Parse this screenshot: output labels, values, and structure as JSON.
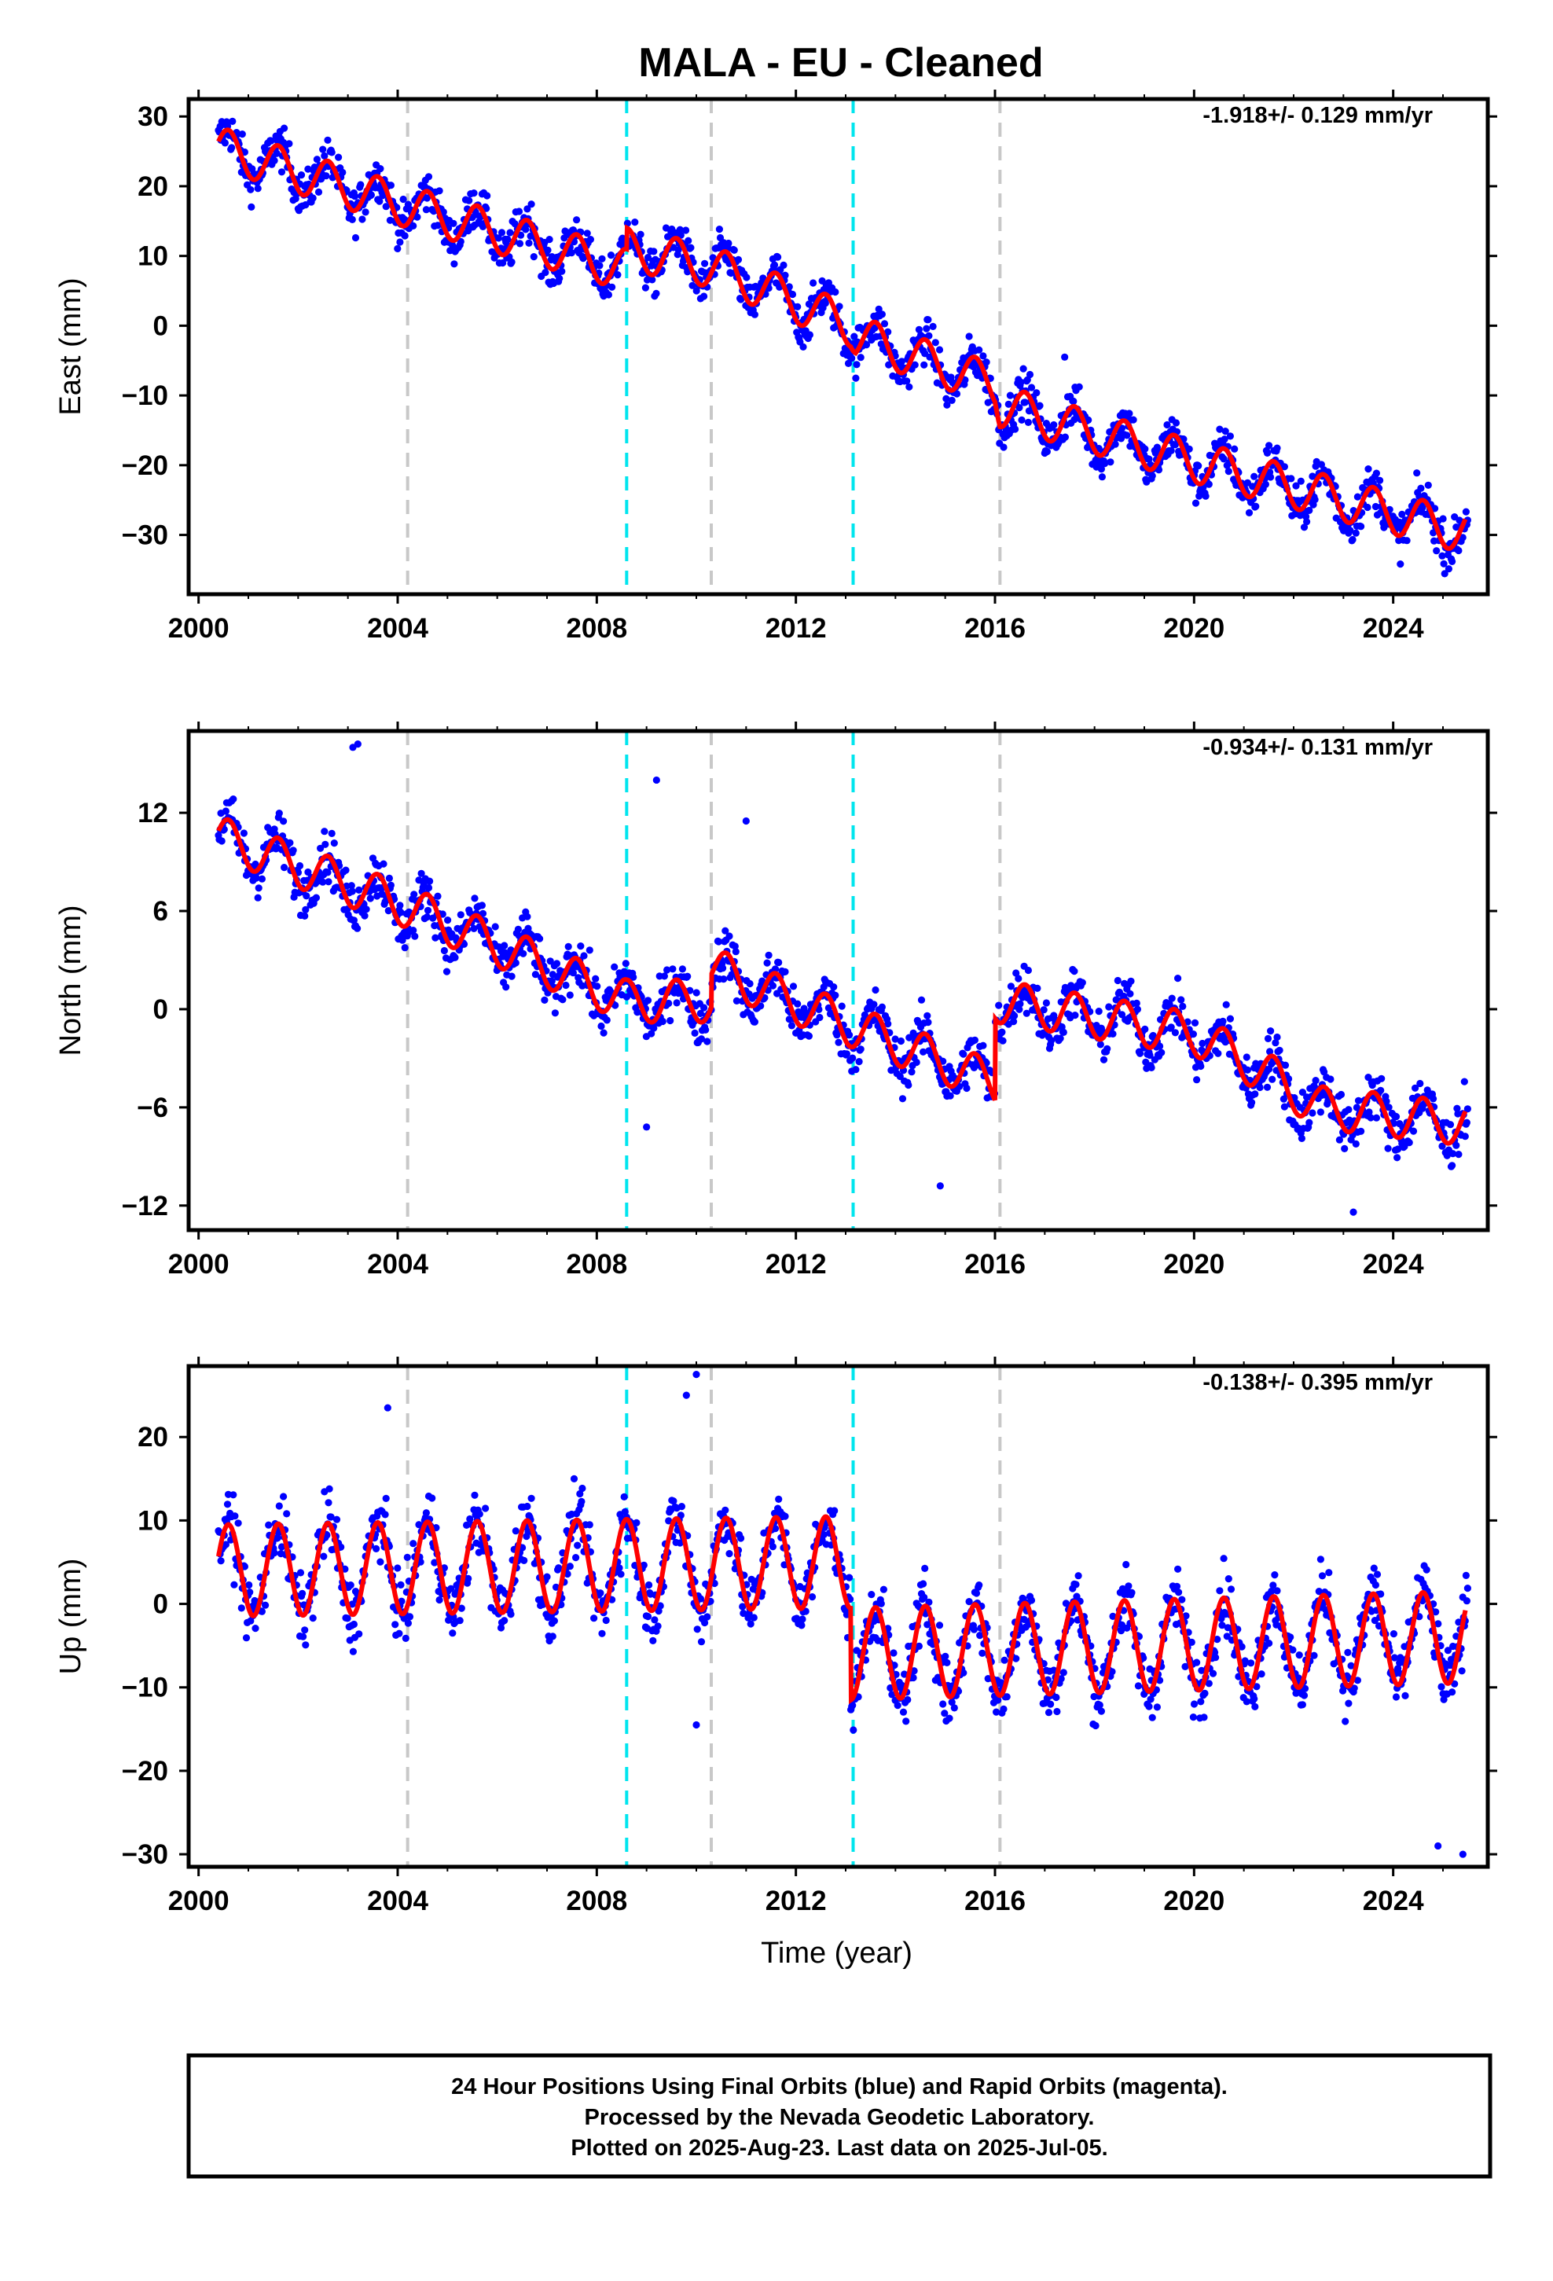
{
  "title": "MALA  - EU - Cleaned",
  "colors": {
    "points": "#0000ff",
    "fit": "#ff0000",
    "equipment_line": "#c8c8c8",
    "event_line": "#00e5ee",
    "frame": "#000000"
  },
  "chart_data": [
    {
      "type": "scatter",
      "name": "east",
      "ylabel": "East (mm)",
      "xlabel": "",
      "rate": "-1.918+/- 0.129 mm/yr",
      "xlim": [
        1999.8,
        2025.9
      ],
      "ylim": [
        -38.5,
        32.5
      ],
      "yticks": [
        -30,
        -20,
        -10,
        0,
        10,
        20,
        30
      ],
      "xticks": [
        2000,
        2004,
        2008,
        2012,
        2016,
        2020,
        2024
      ],
      "grid": false,
      "trend": [
        {
          "x": 2000.4,
          "y": 25.5
        },
        {
          "x": 2004.0,
          "y": 17.5
        },
        {
          "x": 2008.6,
          "y": 8.0
        },
        {
          "x": 2008.61,
          "y": 11.0
        },
        {
          "x": 2010.3,
          "y": 8.5
        },
        {
          "x": 2013.1,
          "y": 0.0
        },
        {
          "x": 2013.2,
          "y": -1.5
        },
        {
          "x": 2016.0,
          "y": -8.5
        },
        {
          "x": 2016.1,
          "y": -11.5
        },
        {
          "x": 2020.0,
          "y": -19.5
        },
        {
          "x": 2025.4,
          "y": -29.5
        }
      ],
      "seasonal_amplitude": 3.0,
      "scatter_spread": 4.0,
      "outliers": [
        {
          "x": 2017.4,
          "y": -4.5
        }
      ]
    },
    {
      "type": "scatter",
      "name": "north",
      "ylabel": "North (mm)",
      "xlabel": "",
      "rate": "-0.934+/- 0.131 mm/yr",
      "xlim": [
        1999.8,
        2025.9
      ],
      "ylim": [
        -13.5,
        17.0
      ],
      "yticks": [
        -12,
        -6,
        0,
        6,
        12
      ],
      "xticks": [
        2000,
        2004,
        2008,
        2012,
        2016,
        2020,
        2024
      ],
      "grid": false,
      "trend": [
        {
          "x": 2000.4,
          "y": 10.5
        },
        {
          "x": 2004.0,
          "y": 6.5
        },
        {
          "x": 2008.6,
          "y": 0.5
        },
        {
          "x": 2010.3,
          "y": 0.5
        },
        {
          "x": 2010.31,
          "y": 2.5
        },
        {
          "x": 2013.1,
          "y": -1.0
        },
        {
          "x": 2016.0,
          "y": -4.5
        },
        {
          "x": 2016.01,
          "y": 0.5
        },
        {
          "x": 2020.0,
          "y": -1.5
        },
        {
          "x": 2021.5,
          "y": -4.0
        },
        {
          "x": 2022.5,
          "y": -6.0
        },
        {
          "x": 2025.4,
          "y": -7.0
        }
      ],
      "seasonal_amplitude": 1.3,
      "scatter_spread": 2.0,
      "outliers": [
        {
          "x": 2003.1,
          "y": 16.0
        },
        {
          "x": 2003.2,
          "y": 16.2
        },
        {
          "x": 2009.2,
          "y": 14.0
        },
        {
          "x": 2011.0,
          "y": 11.5
        },
        {
          "x": 2014.9,
          "y": -10.8
        },
        {
          "x": 2009.0,
          "y": -7.2
        },
        {
          "x": 2023.2,
          "y": -12.4
        }
      ]
    },
    {
      "type": "scatter",
      "name": "up",
      "ylabel": "Up (mm)",
      "xlabel": "Time (year)",
      "rate": "-0.138+/- 0.395 mm/yr",
      "xlim": [
        1999.8,
        2025.9
      ],
      "ylim": [
        -31.5,
        28.5
      ],
      "yticks": [
        -30,
        -20,
        -10,
        0,
        10,
        20
      ],
      "xticks": [
        2000,
        2004,
        2008,
        2012,
        2016,
        2020,
        2024
      ],
      "grid": false,
      "trend": [
        {
          "x": 2000.4,
          "y": 4.0
        },
        {
          "x": 2013.1,
          "y": 5.0
        },
        {
          "x": 2013.11,
          "y": -6.0
        },
        {
          "x": 2016.0,
          "y": -5.5
        },
        {
          "x": 2025.4,
          "y": -4.0
        }
      ],
      "seasonal_amplitude": 5.5,
      "scatter_spread": 5.0,
      "outliers": [
        {
          "x": 2010.0,
          "y": 27.5
        },
        {
          "x": 2009.8,
          "y": 25.0
        },
        {
          "x": 2003.8,
          "y": 23.5
        },
        {
          "x": 2010.0,
          "y": -14.5
        },
        {
          "x": 2025.4,
          "y": -30.0
        },
        {
          "x": 2024.9,
          "y": -29.0
        }
      ]
    }
  ],
  "vertical_markers": {
    "equipment_changes": [
      2004.2,
      2010.3,
      2016.1
    ],
    "events": [
      2008.6,
      2013.15
    ]
  },
  "footer": {
    "line1": "24 Hour Positions Using Final Orbits (blue) and Rapid Orbits (magenta).",
    "line2": "Processed by the Nevada Geodetic Laboratory.",
    "line3": "Plotted on 2025-Aug-23. Last data on 2025-Jul-05."
  }
}
